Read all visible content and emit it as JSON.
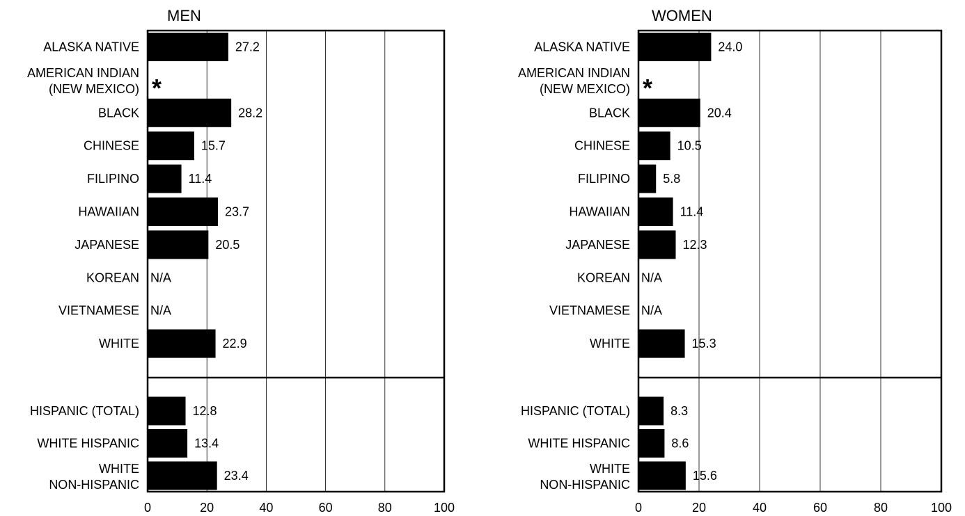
{
  "chart_data": [
    {
      "type": "bar",
      "orientation": "horizontal",
      "title": "MEN",
      "xlim": [
        0,
        100
      ],
      "x_ticks": [
        "0",
        "20",
        "40",
        "60",
        "80",
        "100"
      ],
      "grid": true,
      "groups": [
        {
          "rows": [
            {
              "label": [
                "ALASKA NATIVE"
              ],
              "value": 27.2,
              "value_label": "27.2"
            },
            {
              "label": [
                "AMERICAN INDIAN",
                "(NEW MEXICO)"
              ],
              "value": null,
              "value_label": "*"
            },
            {
              "label": [
                "BLACK"
              ],
              "value": 28.2,
              "value_label": "28.2"
            },
            {
              "label": [
                "CHINESE"
              ],
              "value": 15.7,
              "value_label": "15.7"
            },
            {
              "label": [
                "FILIPINO"
              ],
              "value": 11.4,
              "value_label": "11.4"
            },
            {
              "label": [
                "HAWAIIAN"
              ],
              "value": 23.7,
              "value_label": "23.7"
            },
            {
              "label": [
                "JAPANESE"
              ],
              "value": 20.5,
              "value_label": "20.5"
            },
            {
              "label": [
                "KOREAN"
              ],
              "value": null,
              "value_label": "N/A"
            },
            {
              "label": [
                "VIETNAMESE"
              ],
              "value": null,
              "value_label": "N/A"
            },
            {
              "label": [
                "WHITE"
              ],
              "value": 22.9,
              "value_label": "22.9"
            }
          ]
        },
        {
          "rows": [
            {
              "label": [
                "HISPANIC (TOTAL)"
              ],
              "value": 12.8,
              "value_label": "12.8"
            },
            {
              "label": [
                "WHITE HISPANIC"
              ],
              "value": 13.4,
              "value_label": "13.4"
            },
            {
              "label": [
                "WHITE",
                "NON-HISPANIC"
              ],
              "value": 23.4,
              "value_label": "23.4"
            }
          ]
        }
      ]
    },
    {
      "type": "bar",
      "orientation": "horizontal",
      "title": "WOMEN",
      "xlim": [
        0,
        100
      ],
      "x_ticks": [
        "0",
        "20",
        "40",
        "60",
        "80",
        "100"
      ],
      "grid": true,
      "groups": [
        {
          "rows": [
            {
              "label": [
                "ALASKA NATIVE"
              ],
              "value": 24.0,
              "value_label": "24.0"
            },
            {
              "label": [
                "AMERICAN INDIAN",
                "(NEW MEXICO)"
              ],
              "value": null,
              "value_label": "*"
            },
            {
              "label": [
                "BLACK"
              ],
              "value": 20.4,
              "value_label": "20.4"
            },
            {
              "label": [
                "CHINESE"
              ],
              "value": 10.5,
              "value_label": "10.5"
            },
            {
              "label": [
                "FILIPINO"
              ],
              "value": 5.8,
              "value_label": "5.8"
            },
            {
              "label": [
                "HAWAIIAN"
              ],
              "value": 11.4,
              "value_label": "11.4"
            },
            {
              "label": [
                "JAPANESE"
              ],
              "value": 12.3,
              "value_label": "12.3"
            },
            {
              "label": [
                "KOREAN"
              ],
              "value": null,
              "value_label": "N/A"
            },
            {
              "label": [
                "VIETNAMESE"
              ],
              "value": null,
              "value_label": "N/A"
            },
            {
              "label": [
                "WHITE"
              ],
              "value": 15.3,
              "value_label": "15.3"
            }
          ]
        },
        {
          "rows": [
            {
              "label": [
                "HISPANIC (TOTAL)"
              ],
              "value": 8.3,
              "value_label": "8.3"
            },
            {
              "label": [
                "WHITE HISPANIC"
              ],
              "value": 8.6,
              "value_label": "8.6"
            },
            {
              "label": [
                "WHITE",
                "NON-HISPANIC"
              ],
              "value": 15.6,
              "value_label": "15.6"
            }
          ]
        }
      ]
    }
  ],
  "colors": {
    "bar": "#000000",
    "grid": "#000000",
    "frame": "#000000",
    "background": "#ffffff"
  }
}
